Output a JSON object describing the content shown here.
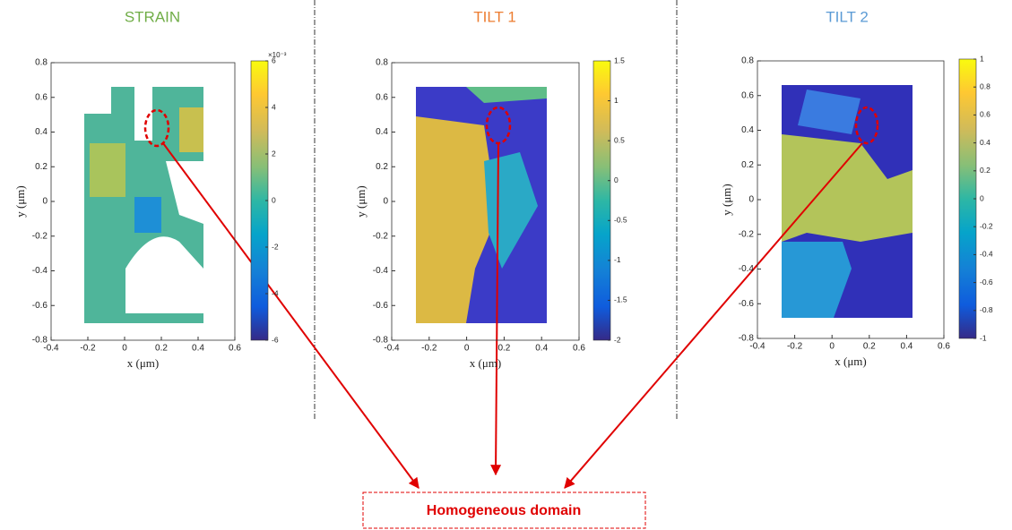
{
  "chart_data": [
    {
      "type": "heatmap",
      "title": "STRAIN",
      "title_color": "#70ad47",
      "xlabel": "x (μm)",
      "ylabel": "y (μm)",
      "xlim": [
        -0.4,
        0.6
      ],
      "xticks": [
        -0.4,
        -0.2,
        0,
        0.2,
        0.4,
        0.6
      ],
      "ylim": [
        -0.8,
        0.8
      ],
      "yticks": [
        -0.8,
        -0.6,
        -0.4,
        -0.2,
        0,
        0.2,
        0.4,
        0.6,
        0.8
      ],
      "clim": [
        -6,
        6
      ],
      "cticks": [
        -6,
        -4,
        -2,
        0,
        2,
        4,
        6
      ],
      "colorbar_scale": "×10⁻³"
    },
    {
      "type": "heatmap",
      "title": "TILT 1",
      "title_color": "#ed7d31",
      "xlabel": "x (μm)",
      "ylabel": "y (μm)",
      "xlim": [
        -0.4,
        0.6
      ],
      "xticks": [
        -0.4,
        -0.2,
        0,
        0.2,
        0.4,
        0.6
      ],
      "ylim": [
        -0.8,
        0.8
      ],
      "yticks": [
        -0.8,
        -0.6,
        -0.4,
        -0.2,
        0,
        0.2,
        0.4,
        0.6,
        0.8
      ],
      "clim": [
        -2,
        1.5
      ],
      "cticks": [
        -2,
        -1.5,
        -1,
        -0.5,
        0,
        0.5,
        1,
        1.5
      ]
    },
    {
      "type": "heatmap",
      "title": "TILT 2",
      "title_color": "#5b9bd5",
      "xlabel": "x (μm)",
      "ylabel": "y (μm)",
      "xlim": [
        -0.4,
        0.6
      ],
      "xticks": [
        -0.4,
        -0.2,
        0,
        0.2,
        0.4,
        0.6
      ],
      "ylim": [
        -0.8,
        0.8
      ],
      "yticks": [
        -0.8,
        -0.6,
        -0.4,
        -0.2,
        0,
        0.2,
        0.4,
        0.6,
        0.8
      ],
      "clim": [
        -1,
        1
      ],
      "cticks": [
        -1,
        -0.8,
        -0.6,
        -0.4,
        -0.2,
        0,
        0.2,
        0.4,
        0.6,
        0.8,
        1
      ]
    }
  ],
  "annotation": "Homogeneous domain"
}
